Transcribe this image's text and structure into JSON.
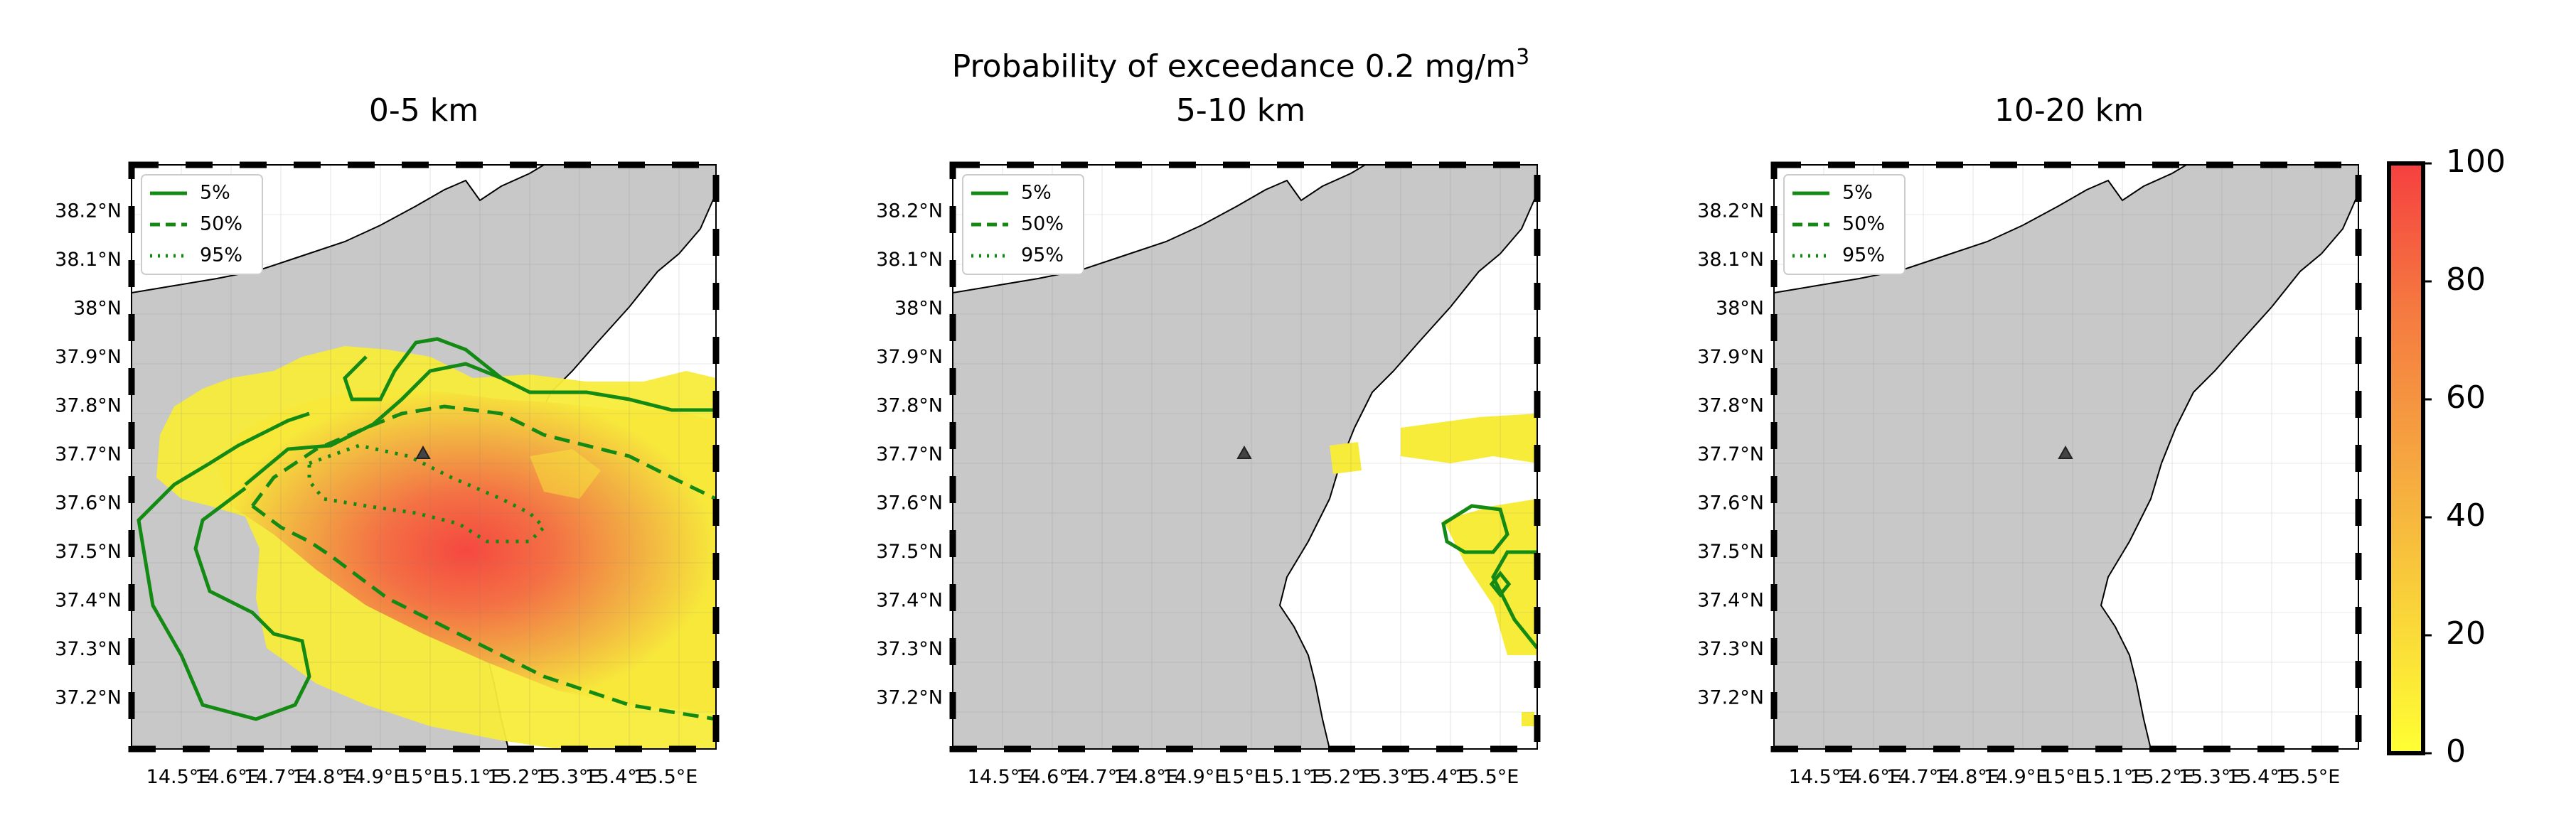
{
  "figure": {
    "suptitle": "Probability of exceedance 0.2 mg/m",
    "suptitle_sup": "3"
  },
  "panels": [
    {
      "title": "0-5 km"
    },
    {
      "title": "5-10 km"
    },
    {
      "title": "10-20 km"
    }
  ],
  "legend": [
    "5%",
    "50%",
    "95%"
  ],
  "lat_labels": [
    "38.2°N",
    "38.1°N",
    "38°N",
    "37.9°N",
    "37.8°N",
    "37.7°N",
    "37.6°N",
    "37.5°N",
    "37.4°N",
    "37.3°N",
    "37.2°N"
  ],
  "lon_labels": [
    "14.5°E",
    "14.6°E",
    "14.7°E",
    "14.8°E",
    "14.9°E",
    "15°E",
    "15.1°E",
    "15.2°E",
    "15.3°E",
    "15.4°E",
    "15.5°E"
  ],
  "colorbar": {
    "ticks": [
      "0",
      "20",
      "40",
      "60",
      "80",
      "100"
    ],
    "range": [
      0,
      100
    ],
    "colors": {
      "low": "#ffff33",
      "mid": "#f5a540",
      "high": "#f54040"
    }
  },
  "colors": {
    "land": "#c8c8c8",
    "contour": "#138a13",
    "volcano_marker": "#444444"
  },
  "chart_data": [
    {
      "type": "heatmap",
      "title": "0-5 km",
      "xlim": [
        14.44,
        15.62
      ],
      "ylim": [
        37.12,
        38.3
      ],
      "volcano": {
        "lon": 15.0,
        "lat": 37.73
      },
      "plume": {
        "centre": [
          15.22,
          37.62
        ],
        "max_probability": 100
      },
      "contours": [
        "5%",
        "50%",
        "95%"
      ]
    },
    {
      "type": "heatmap",
      "title": "5-10 km",
      "xlim": [
        14.44,
        15.62
      ],
      "ylim": [
        37.12,
        38.3
      ],
      "volcano": {
        "lon": 15.0,
        "lat": 37.73
      },
      "contours": [
        "5%"
      ]
    },
    {
      "type": "heatmap",
      "title": "10-20 km",
      "xlim": [
        14.44,
        15.62
      ],
      "ylim": [
        37.12,
        38.3
      ],
      "volcano": {
        "lon": 15.0,
        "lat": 37.73
      },
      "contours": []
    }
  ]
}
